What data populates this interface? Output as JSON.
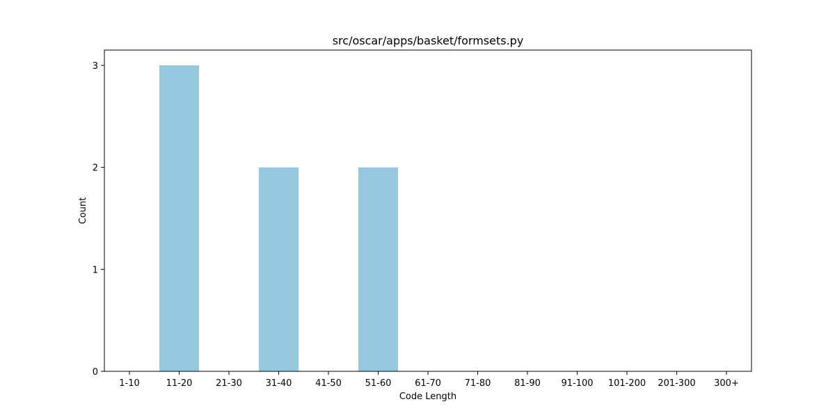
{
  "chart_data": {
    "type": "bar",
    "title": "src/oscar/apps/basket/formsets.py",
    "xlabel": "Code Length",
    "ylabel": "Count",
    "categories": [
      "1-10",
      "11-20",
      "21-30",
      "31-40",
      "41-50",
      "51-60",
      "61-70",
      "71-80",
      "81-90",
      "91-100",
      "101-200",
      "201-300",
      "300+"
    ],
    "values": [
      0,
      3,
      0,
      2,
      0,
      2,
      0,
      0,
      0,
      0,
      0,
      0,
      0
    ],
    "ylim": [
      0,
      3.15
    ],
    "yticks": [
      0,
      1,
      2,
      3
    ],
    "grid": false,
    "legend": "none",
    "bar_color": "#96c9de"
  }
}
